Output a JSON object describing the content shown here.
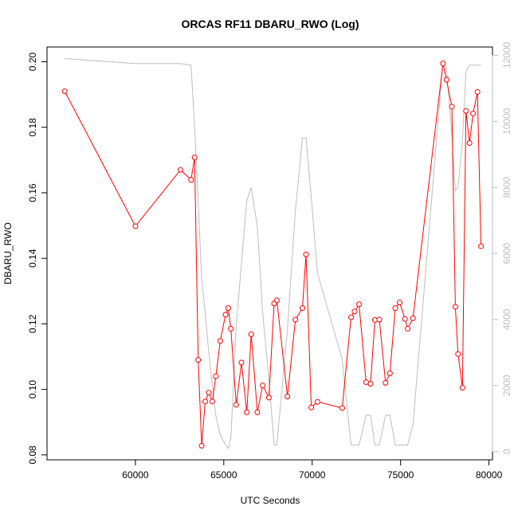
{
  "chart_data": {
    "type": "line",
    "title": "ORCAS RF11 DBARU_RWO (Log)",
    "xlabel": "UTC Seconds",
    "ylabel": "DBARU_RWO",
    "xlim": [
      55000,
      80200
    ],
    "ylim": [
      0.0785,
      0.2045
    ],
    "y2lim": [
      -250,
      12250
    ],
    "x_ticks": [
      60000,
      65000,
      70000,
      75000,
      80000
    ],
    "x_tick_labels": [
      "60000",
      "65000",
      "70000",
      "75000",
      "80000"
    ],
    "y_ticks": [
      0.08,
      0.1,
      0.12,
      0.14,
      0.16,
      0.18,
      0.2
    ],
    "y_tick_labels": [
      "0.08",
      "0.10",
      "0.12",
      "0.14",
      "0.16",
      "0.18",
      "0.20"
    ],
    "y2_ticks": [
      0,
      2000,
      4000,
      6000,
      8000,
      10000,
      12000
    ],
    "y2_tick_labels": [
      "0",
      "2000",
      "4000",
      "6000",
      "8000",
      "10000",
      "12000"
    ],
    "grid": false,
    "colors": {
      "primary": "#ff0000",
      "secondary": "#bebebe",
      "axes": "#000000"
    },
    "series": [
      {
        "axis": "left",
        "style": "line+points",
        "color": "#ff0000",
        "points": [
          [
            56000,
            0.191
          ],
          [
            60000,
            0.1498
          ],
          [
            62550,
            0.167
          ],
          [
            63150,
            0.164
          ],
          [
            63350,
            0.1708
          ],
          [
            63550,
            0.109
          ],
          [
            63750,
            0.0828
          ],
          [
            63950,
            0.0963
          ],
          [
            64150,
            0.099
          ],
          [
            64350,
            0.0963
          ],
          [
            64550,
            0.104
          ],
          [
            64800,
            0.1148
          ],
          [
            65100,
            0.1228
          ],
          [
            65250,
            0.1248
          ],
          [
            65400,
            0.1185
          ],
          [
            65700,
            0.0953
          ],
          [
            66000,
            0.1082
          ],
          [
            66300,
            0.093
          ],
          [
            66550,
            0.1168
          ],
          [
            66900,
            0.093
          ],
          [
            67200,
            0.1012
          ],
          [
            67550,
            0.0975
          ],
          [
            67850,
            0.1262
          ],
          [
            68000,
            0.1272
          ],
          [
            68600,
            0.0978
          ],
          [
            69050,
            0.1213
          ],
          [
            69450,
            0.1248
          ],
          [
            69650,
            0.1412
          ],
          [
            69950,
            0.0945
          ],
          [
            70300,
            0.0962
          ],
          [
            71700,
            0.0943
          ],
          [
            72200,
            0.122
          ],
          [
            72400,
            0.1238
          ],
          [
            72650,
            0.126
          ],
          [
            73050,
            0.1022
          ],
          [
            73300,
            0.1017
          ],
          [
            73550,
            0.1212
          ],
          [
            73800,
            0.1213
          ],
          [
            74150,
            0.102
          ],
          [
            74400,
            0.1049
          ],
          [
            74700,
            0.1248
          ],
          [
            74950,
            0.1265
          ],
          [
            75250,
            0.1215
          ],
          [
            75400,
            0.1185
          ],
          [
            75700,
            0.1217
          ],
          [
            77400,
            0.1995
          ],
          [
            77600,
            0.1945
          ],
          [
            77900,
            0.1863
          ],
          [
            78100,
            0.1252
          ],
          [
            78250,
            0.1108
          ],
          [
            78500,
            0.1005
          ],
          [
            78700,
            0.185
          ],
          [
            78900,
            0.1752
          ],
          [
            79100,
            0.1842
          ],
          [
            79350,
            0.1908
          ],
          [
            79550,
            0.1437
          ]
        ]
      },
      {
        "axis": "right",
        "style": "line",
        "color": "#bebebe",
        "points": [
          [
            56000,
            11900
          ],
          [
            60000,
            11750
          ],
          [
            62550,
            11750
          ],
          [
            63150,
            11700
          ],
          [
            63350,
            9800
          ],
          [
            63550,
            7600
          ],
          [
            63750,
            5200
          ],
          [
            63950,
            4200
          ],
          [
            64150,
            3000
          ],
          [
            64350,
            2000
          ],
          [
            64550,
            1100
          ],
          [
            64800,
            500
          ],
          [
            65100,
            200
          ],
          [
            65250,
            100
          ],
          [
            65400,
            400
          ],
          [
            65700,
            3800
          ],
          [
            66000,
            5700
          ],
          [
            66300,
            7600
          ],
          [
            66550,
            8000
          ],
          [
            66900,
            6800
          ],
          [
            67200,
            4200
          ],
          [
            67550,
            2200
          ],
          [
            67850,
            200
          ],
          [
            68000,
            200
          ],
          [
            68600,
            3700
          ],
          [
            69050,
            7300
          ],
          [
            69450,
            9500
          ],
          [
            69650,
            9500
          ],
          [
            69950,
            7700
          ],
          [
            70300,
            5400
          ],
          [
            71700,
            2800
          ],
          [
            72200,
            200
          ],
          [
            72400,
            200
          ],
          [
            72650,
            200
          ],
          [
            73050,
            1100
          ],
          [
            73300,
            1100
          ],
          [
            73550,
            200
          ],
          [
            73800,
            200
          ],
          [
            74150,
            1100
          ],
          [
            74400,
            1100
          ],
          [
            74700,
            200
          ],
          [
            74950,
            200
          ],
          [
            75250,
            200
          ],
          [
            75400,
            200
          ],
          [
            75700,
            800
          ],
          [
            77400,
            11800
          ],
          [
            77600,
            11600
          ],
          [
            77900,
            9600
          ],
          [
            78100,
            7900
          ],
          [
            78250,
            8000
          ],
          [
            78500,
            9400
          ],
          [
            78700,
            11500
          ],
          [
            78900,
            11700
          ],
          [
            79100,
            11700
          ],
          [
            79350,
            11700
          ],
          [
            79550,
            11700
          ]
        ]
      }
    ]
  }
}
